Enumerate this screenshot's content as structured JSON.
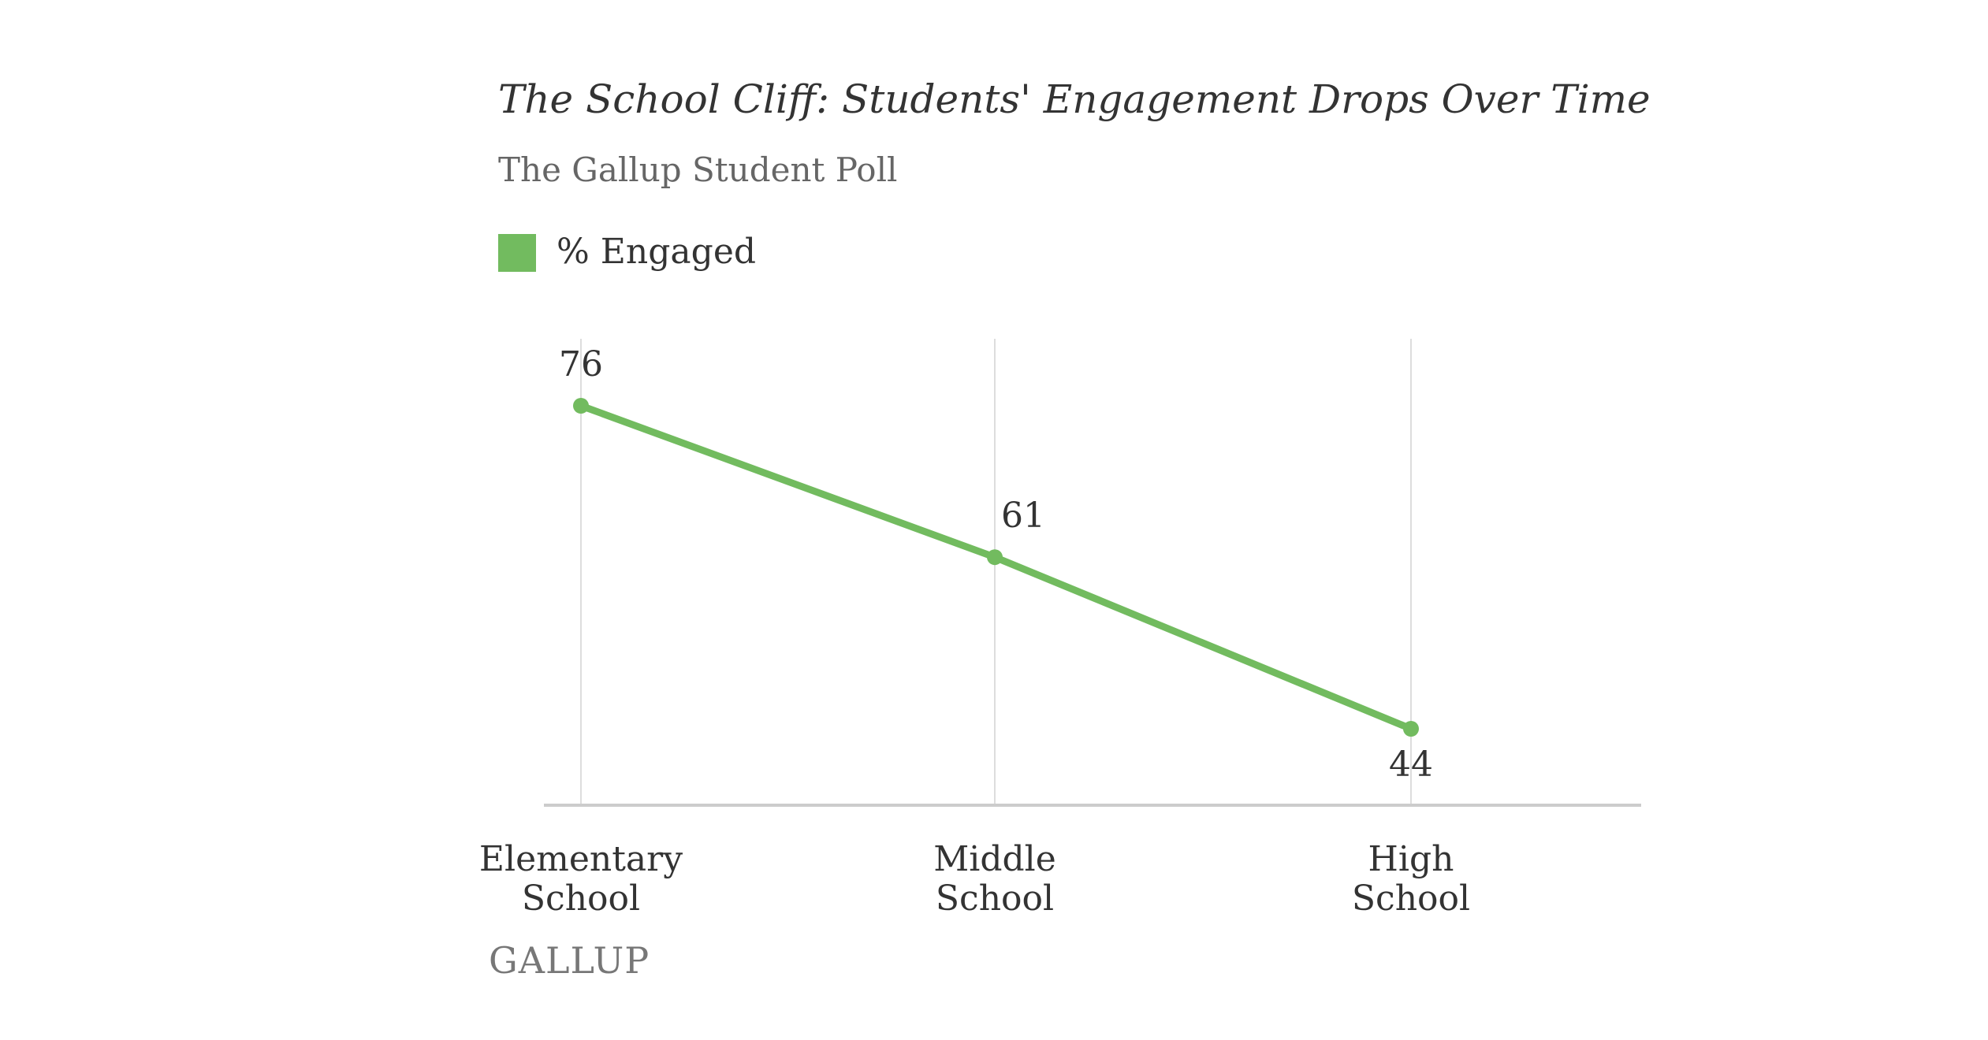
{
  "chart_data": {
    "type": "line",
    "title": "The School Cliff: Students' Engagement Drops Over Time",
    "subtitle": "The Gallup Student Poll",
    "categories": [
      [
        "Elementary",
        "School"
      ],
      [
        "Middle",
        "School"
      ],
      [
        "High",
        "School"
      ]
    ],
    "series": [
      {
        "name": "% Engaged",
        "values": [
          76,
          61,
          44
        ],
        "color": "#72bb5f"
      }
    ],
    "ylim": [
      37,
      80
    ],
    "grid": "vertical",
    "legend_position": "top-left"
  },
  "source_logo": "GALLUP",
  "colors": {
    "line": "#72bb5f",
    "grid": "#dddddd",
    "axis": "#cccccc",
    "text": "#333333"
  }
}
